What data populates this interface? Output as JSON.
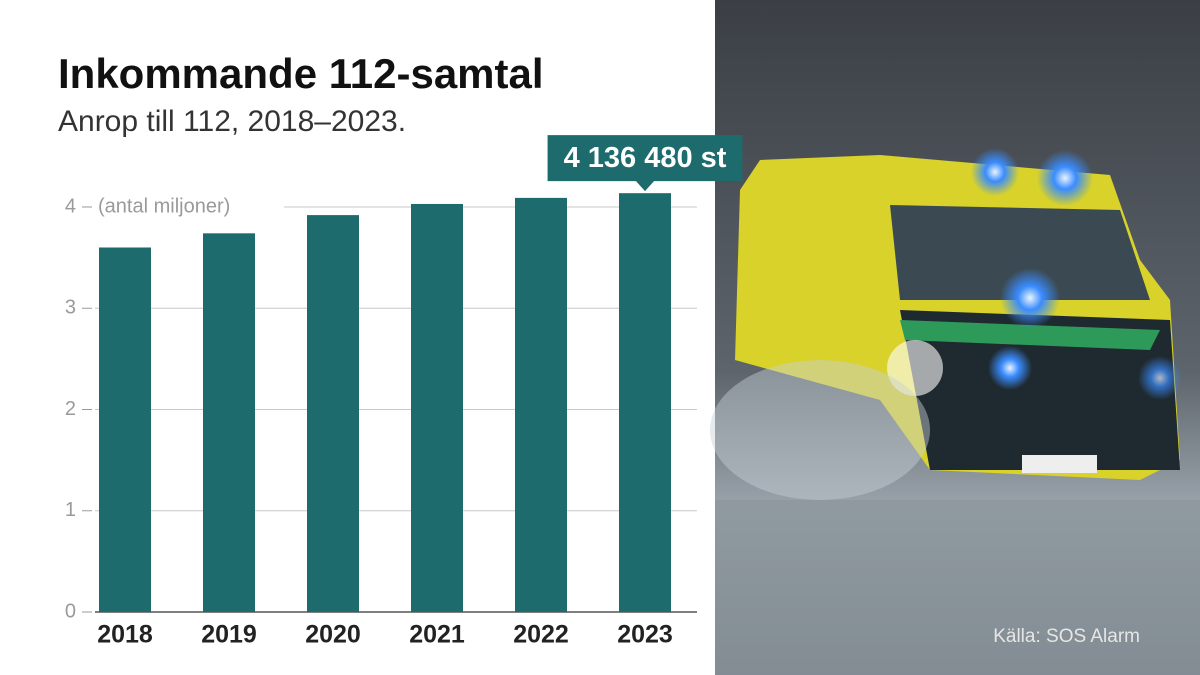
{
  "chart_data": {
    "type": "bar",
    "title": "Inkommande 112-samtal",
    "subtitle": "Anrop till 112, 2018–2023.",
    "y_axis_label": "(antal miljoner)",
    "categories": [
      "2018",
      "2019",
      "2020",
      "2021",
      "2022",
      "2023"
    ],
    "values": [
      3.6,
      3.74,
      3.92,
      4.03,
      4.09,
      4.13648
    ],
    "value_labels": [
      null,
      null,
      null,
      null,
      null,
      "4 136 480 st"
    ],
    "color": "#1e6b6e",
    "ylim": [
      0,
      4.2
    ],
    "yticks": [
      0,
      1,
      2,
      3,
      4
    ],
    "grid": true,
    "source": "Källa: SOS Alarm"
  }
}
